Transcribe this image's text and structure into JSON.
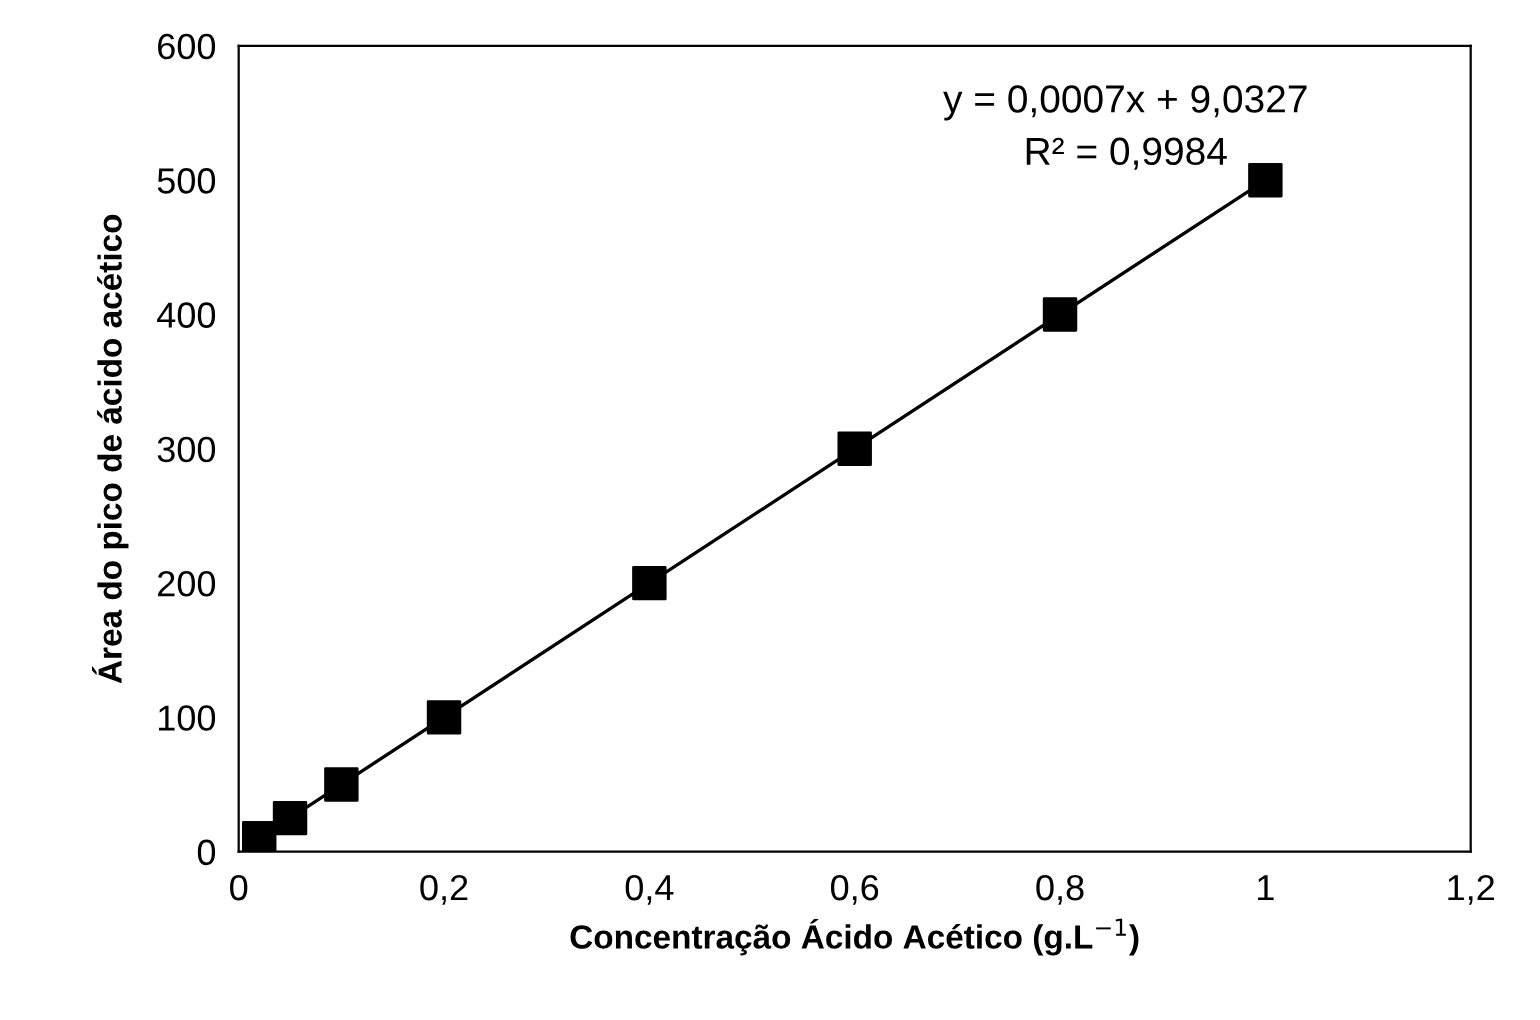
{
  "chart_data": {
    "type": "scatter",
    "xlabel": "Concentração Ácido Acético (g.L$^{−1}$)",
    "ylabel": "Área do pico de ácido acético",
    "annotations": [
      "y = 0,0007x + 9,0327",
      "R² = 0,9984"
    ],
    "series": [
      {
        "color": "#000000",
        "marker": "square",
        "x": [
          0.02,
          0.05,
          0.1,
          0.2,
          0.4,
          0.6,
          0.8,
          1.0
        ],
        "values": [
          10,
          25,
          50,
          100,
          200,
          300,
          400,
          500
        ]
      },
      {
        "type": "line",
        "color": "#000000",
        "line_style": "solid",
        "x": [
          0.02,
          1.0
        ],
        "values": [
          10,
          500
        ]
      }
    ],
    "xlim": [
      0,
      1.2
    ],
    "xticks": [
      0,
      {
        "value": 0.2,
        "label": "0,2"
      },
      {
        "value": 0.4,
        "label": "0,4"
      },
      {
        "value": 0.6,
        "label": "0,6"
      },
      {
        "value": 0.8,
        "label": "0,8"
      },
      1,
      {
        "value": 1.2,
        "label": "1,2"
      }
    ],
    "ylim": [
      0,
      600
    ],
    "yticks": [
      0,
      100,
      200,
      300,
      400,
      500,
      600
    ],
    "grid": false
  }
}
